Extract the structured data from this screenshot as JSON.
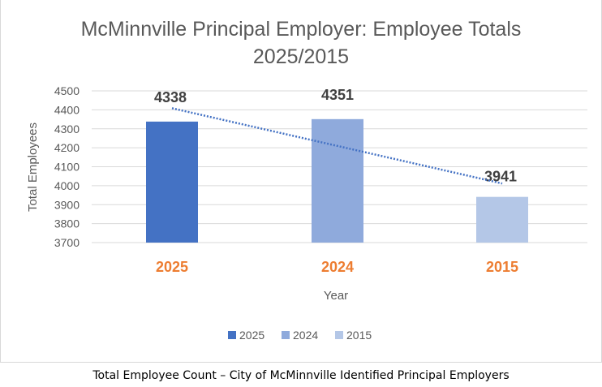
{
  "chart_data": {
    "type": "bar",
    "title_lines": [
      "McMinnville Principal Employer: Employee Totals",
      "2025/2015"
    ],
    "categories": [
      "2025",
      "2024",
      "2015"
    ],
    "values": [
      4338,
      4351,
      3941
    ],
    "data_labels": [
      "4338",
      "4351",
      "3941"
    ],
    "xlabel": "Year",
    "ylabel": "Total Employees",
    "ylim": [
      3700,
      4500
    ],
    "yticks": [
      "3700",
      "3800",
      "3900",
      "4000",
      "4100",
      "4200",
      "4300",
      "4400",
      "4500"
    ],
    "grid": true,
    "trendline": "linear (dotted)",
    "legend": {
      "placement": "bottom",
      "entries": [
        "2025",
        "2024",
        "2015"
      ]
    },
    "colors": {
      "2025": "#4472c4",
      "2024": "#8faadc",
      "2015": "#b4c7e7",
      "category_label": "#ed7d31",
      "trendline": "#4472c4"
    }
  },
  "caption": "Total Employee Count – City of McMinnville Identified Principal Employers"
}
